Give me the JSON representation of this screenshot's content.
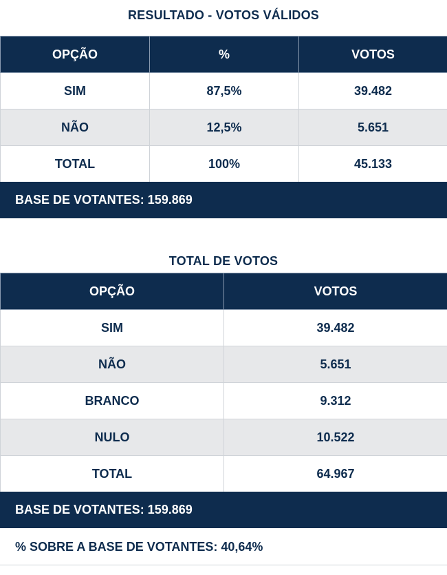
{
  "section1": {
    "title": "RESULTADO - VOTOS VÁLIDOS",
    "headers": [
      "OPÇÃO",
      "%",
      "VOTOS"
    ],
    "rows": [
      [
        "SIM",
        "87,5%",
        "39.482"
      ],
      [
        "NÃO",
        "12,5%",
        "5.651"
      ],
      [
        "TOTAL",
        "100%",
        "45.133"
      ]
    ],
    "footer": "BASE DE VOTANTES: 159.869"
  },
  "section2": {
    "title": "TOTAL DE VOTOS",
    "headers": [
      "OPÇÃO",
      "VOTOS"
    ],
    "rows": [
      [
        "SIM",
        "39.482"
      ],
      [
        "NÃO",
        "5.651"
      ],
      [
        "BRANCO",
        "9.312"
      ],
      [
        "NULO",
        "10.522"
      ],
      [
        "TOTAL",
        "64.967"
      ]
    ],
    "footer": "BASE DE VOTANTES: 159.869",
    "footer2": "% SOBRE A BASE DE VOTANTES: 40,64%"
  },
  "colors": {
    "navy": "#0e2c4e",
    "row_alt": "#e7e8ea",
    "white": "#ffffff"
  }
}
